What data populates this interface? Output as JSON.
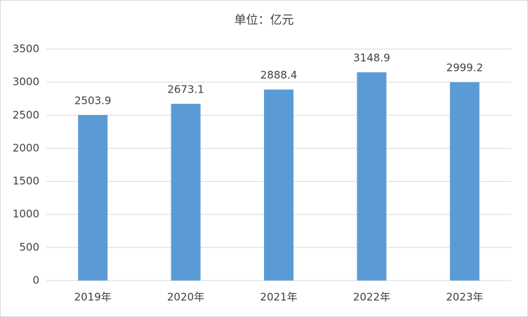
{
  "chart_data": {
    "type": "bar",
    "title": "单位：亿元",
    "categories": [
      "2019年",
      "2020年",
      "2021年",
      "2022年",
      "2023年"
    ],
    "values": [
      2503.9,
      2673.1,
      2888.4,
      3148.9,
      2999.2
    ],
    "color": "#5b9bd5",
    "ylim": [
      0,
      3500
    ],
    "yticks": [
      0,
      500,
      1000,
      1500,
      2000,
      2500,
      3000,
      3500
    ],
    "grid": true
  }
}
